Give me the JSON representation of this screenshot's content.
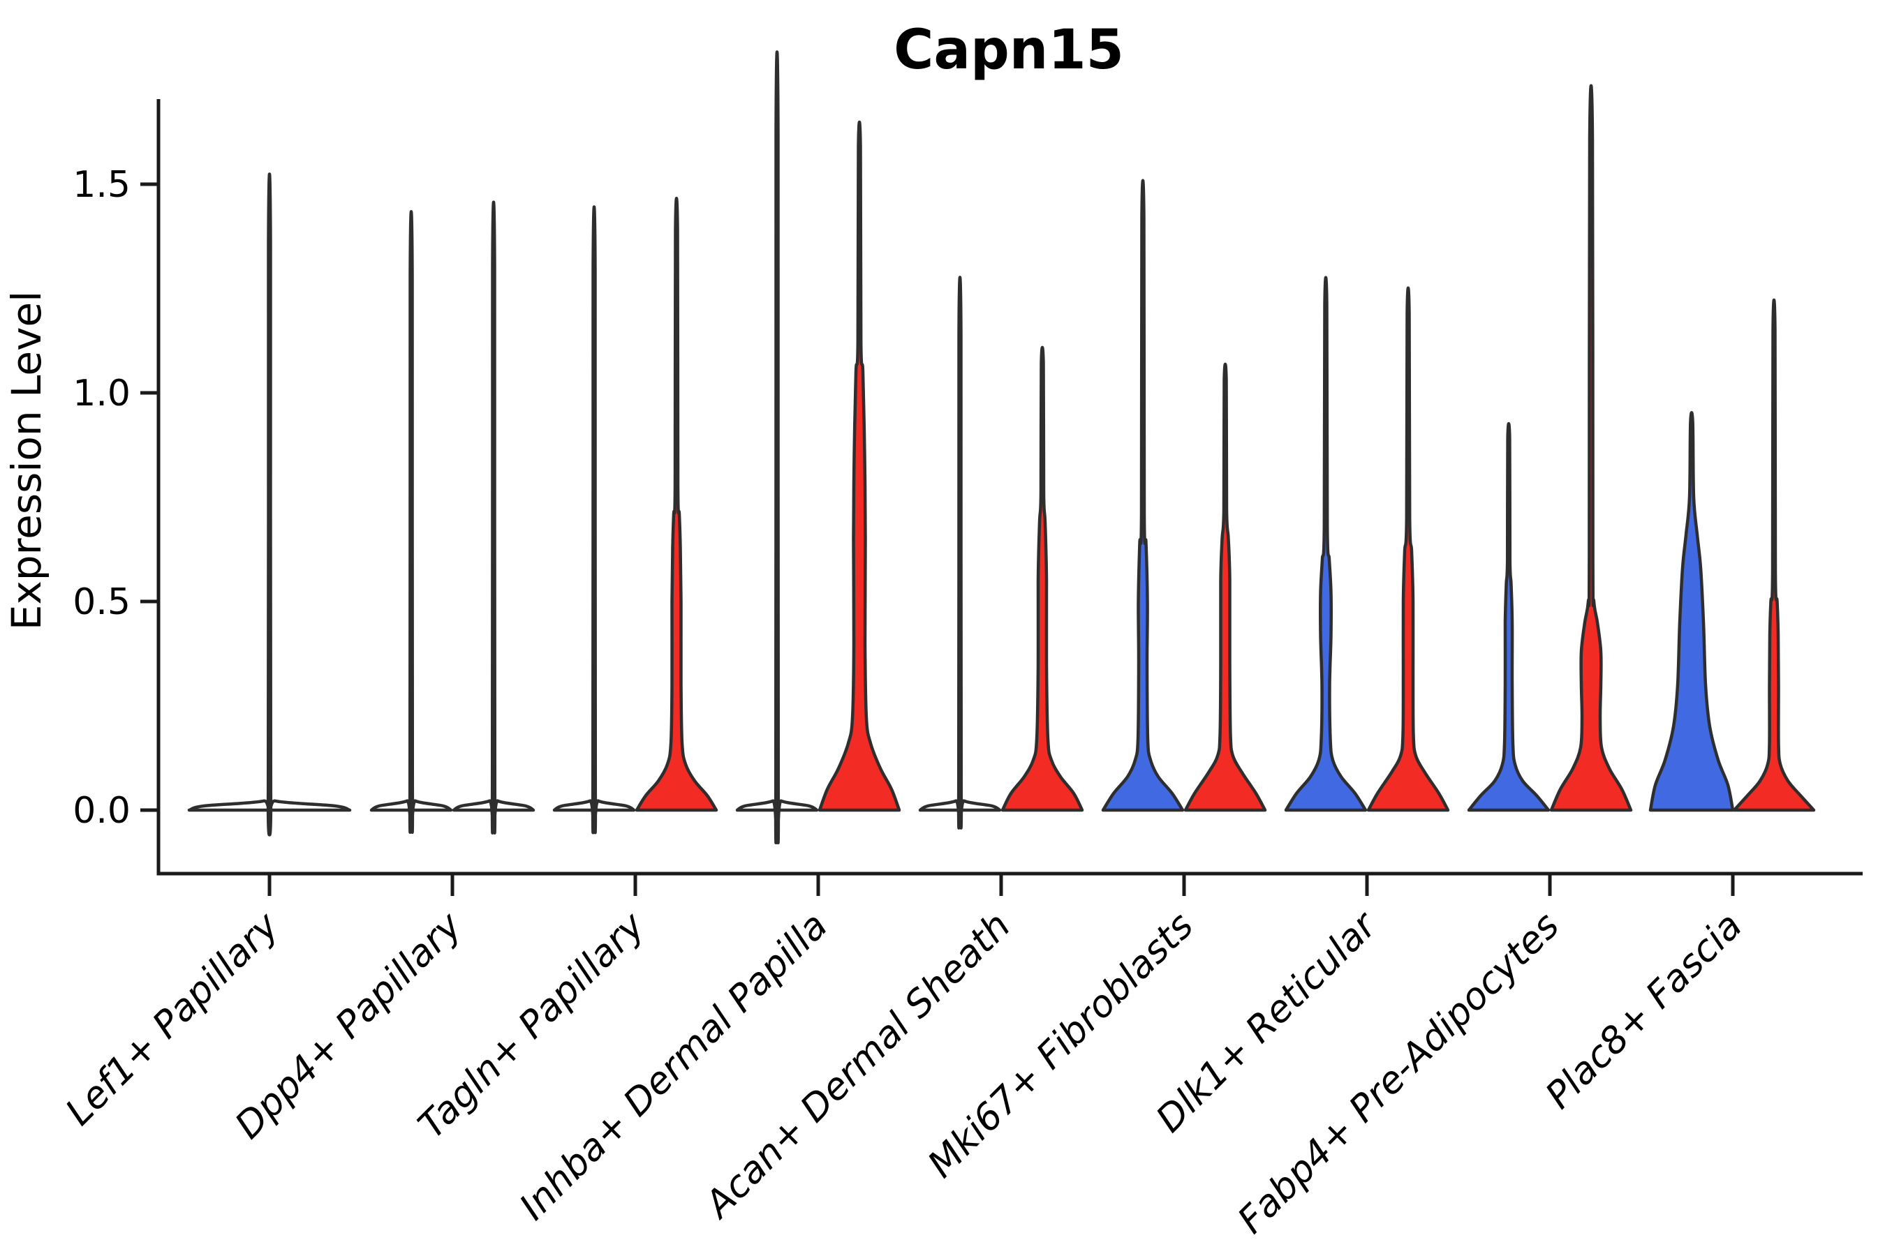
{
  "chart_data": {
    "type": "violin",
    "title": "Capn15",
    "ylabel": "Expression Level",
    "xlabel": "",
    "y_tick_labels": [
      "0.0",
      "0.5",
      "1.0",
      "1.5"
    ],
    "y_tick_values": [
      0.0,
      0.5,
      1.0,
      1.5
    ],
    "ylim": [
      -0.085,
      1.7
    ],
    "grid": false,
    "legend_position": "none",
    "colors": {
      "blue": "#4169E1",
      "red": "#F22C25",
      "outline": "#2E2E2E",
      "flat_fill": "#FFFFFF",
      "axis": "#1A1A1A",
      "text": "#000000"
    },
    "categories": [
      "Lef1+ Papillary",
      "Dpp4+ Papillary",
      "Tagln+ Papillary",
      "Inhba+ Dermal Papilla",
      "Acan+ Dermal Sheath",
      "Mki67+ Fibroblasts",
      "Dlk1+ Reticular",
      "Fabp4+ Pre-Adipocytes",
      "Plac8+ Fascia"
    ],
    "violin_groups": [
      {
        "category": "Lef1+ Papillary",
        "violins": [
          {
            "side": "center",
            "color": "flat_fill",
            "max": 1.36,
            "profile": [
              [
                0,
                115
              ],
              [
                0.01,
                94
              ],
              [
                0.022,
                8
              ],
              [
                0.045,
                1.8
              ],
              [
                1.36,
                1.5
              ]
            ]
          }
        ]
      },
      {
        "category": "Dpp4+ Papillary",
        "violins": [
          {
            "side": "left",
            "color": "flat_fill",
            "max": 1.28,
            "profile": [
              [
                0,
                57
              ],
              [
                0.01,
                46
              ],
              [
                0.022,
                6
              ],
              [
                0.045,
                1.8
              ],
              [
                1.28,
                1.5
              ]
            ]
          },
          {
            "side": "right",
            "color": "flat_fill",
            "max": 1.3,
            "profile": [
              [
                0,
                57
              ],
              [
                0.01,
                46
              ],
              [
                0.022,
                6
              ],
              [
                0.045,
                1.8
              ],
              [
                1.3,
                1.5
              ]
            ]
          }
        ]
      },
      {
        "category": "Tagln+ Papillary",
        "violins": [
          {
            "side": "left",
            "color": "flat_fill",
            "max": 1.29,
            "profile": [
              [
                0,
                57
              ],
              [
                0.01,
                46
              ],
              [
                0.022,
                6
              ],
              [
                0.045,
                1.8
              ],
              [
                1.29,
                1.5
              ]
            ]
          },
          {
            "side": "right",
            "color": "red",
            "max": 1.39,
            "profile": [
              [
                0,
                57
              ],
              [
                0.035,
                44
              ],
              [
                0.07,
                26
              ],
              [
                0.11,
                13
              ],
              [
                0.16,
                8
              ],
              [
                0.3,
                6.5
              ],
              [
                0.5,
                6.5
              ],
              [
                0.63,
                5.5
              ],
              [
                0.71,
                4
              ],
              [
                0.78,
                2
              ],
              [
                1.39,
                1.5
              ]
            ]
          }
        ]
      },
      {
        "category": "Inhba+ Dermal Papilla",
        "violins": [
          {
            "side": "left",
            "color": "flat_fill",
            "max": 1.62,
            "profile": [
              [
                0,
                57
              ],
              [
                0.01,
                46
              ],
              [
                0.022,
                6
              ],
              [
                0.045,
                1.8
              ],
              [
                1.62,
                1.5
              ]
            ]
          },
          {
            "side": "right",
            "color": "red",
            "max": 1.59,
            "profile": [
              [
                0,
                57
              ],
              [
                0.05,
                46
              ],
              [
                0.1,
                30
              ],
              [
                0.16,
                16
              ],
              [
                0.22,
                10
              ],
              [
                0.4,
                8
              ],
              [
                0.65,
                8.5
              ],
              [
                0.85,
                7.5
              ],
              [
                1.05,
                5
              ],
              [
                1.12,
                2.2
              ],
              [
                1.59,
                1.5
              ]
            ]
          }
        ]
      },
      {
        "category": "Acan+ Dermal Sheath",
        "violins": [
          {
            "side": "left",
            "color": "flat_fill",
            "max": 1.14,
            "profile": [
              [
                0,
                57
              ],
              [
                0.01,
                46
              ],
              [
                0.022,
                6
              ],
              [
                0.045,
                1.8
              ],
              [
                1.14,
                1.5
              ]
            ]
          },
          {
            "side": "right",
            "color": "red",
            "max": 1.07,
            "profile": [
              [
                0,
                57
              ],
              [
                0.04,
                45
              ],
              [
                0.08,
                26
              ],
              [
                0.12,
                13
              ],
              [
                0.17,
                8
              ],
              [
                0.35,
                6
              ],
              [
                0.55,
                6
              ],
              [
                0.69,
                4
              ],
              [
                0.76,
                2
              ],
              [
                1.07,
                1.5
              ]
            ]
          }
        ]
      },
      {
        "category": "Mki67+ Fibroblasts",
        "violins": [
          {
            "side": "left",
            "color": "blue",
            "max": 1.42,
            "profile": [
              [
                0,
                57
              ],
              [
                0.04,
                42
              ],
              [
                0.08,
                22
              ],
              [
                0.12,
                11
              ],
              [
                0.17,
                7
              ],
              [
                0.35,
                6
              ],
              [
                0.5,
                6.5
              ],
              [
                0.64,
                4.5
              ],
              [
                0.71,
                2
              ],
              [
                1.42,
                1.5
              ]
            ]
          },
          {
            "side": "right",
            "color": "red",
            "max": 1.03,
            "profile": [
              [
                0,
                57
              ],
              [
                0.04,
                44
              ],
              [
                0.09,
                24
              ],
              [
                0.13,
                11
              ],
              [
                0.18,
                7.5
              ],
              [
                0.35,
                6.5
              ],
              [
                0.55,
                6.5
              ],
              [
                0.65,
                4.5
              ],
              [
                0.72,
                2
              ],
              [
                1.03,
                1.5
              ]
            ]
          }
        ]
      },
      {
        "category": "Dlk1+ Reticular",
        "violins": [
          {
            "side": "left",
            "color": "blue",
            "max": 1.21,
            "profile": [
              [
                0,
                57
              ],
              [
                0.04,
                42
              ],
              [
                0.08,
                22
              ],
              [
                0.12,
                10
              ],
              [
                0.17,
                6.5
              ],
              [
                0.3,
                5.5
              ],
              [
                0.42,
                7.5
              ],
              [
                0.52,
                7.5
              ],
              [
                0.6,
                5
              ],
              [
                0.68,
                2.2
              ],
              [
                1.21,
                1.5
              ]
            ]
          },
          {
            "side": "right",
            "color": "red",
            "max": 1.19,
            "profile": [
              [
                0,
                57
              ],
              [
                0.04,
                44
              ],
              [
                0.09,
                24
              ],
              [
                0.13,
                11
              ],
              [
                0.18,
                7.5
              ],
              [
                0.33,
                7
              ],
              [
                0.5,
                7
              ],
              [
                0.62,
                5
              ],
              [
                0.7,
                2.2
              ],
              [
                1.19,
                1.5
              ]
            ]
          }
        ]
      },
      {
        "category": "Fabp4+ Pre-Adipocytes",
        "violins": [
          {
            "side": "left",
            "color": "blue",
            "max": 0.89,
            "profile": [
              [
                0,
                57
              ],
              [
                0.035,
                40
              ],
              [
                0.07,
                20
              ],
              [
                0.11,
                9
              ],
              [
                0.16,
                6
              ],
              [
                0.3,
                5
              ],
              [
                0.45,
                5
              ],
              [
                0.54,
                3.5
              ],
              [
                0.6,
                1.8
              ],
              [
                0.89,
                1.4
              ]
            ]
          },
          {
            "side": "right",
            "color": "red",
            "max": 1.61,
            "profile": [
              [
                0,
                57
              ],
              [
                0.05,
                44
              ],
              [
                0.1,
                26
              ],
              [
                0.15,
                15
              ],
              [
                0.22,
                13
              ],
              [
                0.3,
                14
              ],
              [
                0.38,
                14
              ],
              [
                0.45,
                9
              ],
              [
                0.5,
                4
              ],
              [
                0.6,
                2.6
              ],
              [
                1.61,
                2
              ]
            ]
          }
        ]
      },
      {
        "category": "Plac8+ Fascia",
        "violins": [
          {
            "side": "left",
            "color": "blue",
            "max": 0.93,
            "profile": [
              [
                0,
                59
              ],
              [
                0.06,
                52
              ],
              [
                0.12,
                38
              ],
              [
                0.2,
                26
              ],
              [
                0.3,
                20
              ],
              [
                0.45,
                17
              ],
              [
                0.58,
                13
              ],
              [
                0.66,
                8
              ],
              [
                0.75,
                3
              ],
              [
                0.93,
                1.6
              ]
            ]
          },
          {
            "side": "right",
            "color": "red",
            "max": 1.15,
            "profile": [
              [
                0,
                57
              ],
              [
                0.035,
                38
              ],
              [
                0.07,
                20
              ],
              [
                0.11,
                9
              ],
              [
                0.16,
                6.5
              ],
              [
                0.3,
                6.5
              ],
              [
                0.42,
                6
              ],
              [
                0.5,
                4.5
              ],
              [
                0.57,
                2
              ],
              [
                1.15,
                1.5
              ]
            ]
          }
        ]
      }
    ]
  }
}
